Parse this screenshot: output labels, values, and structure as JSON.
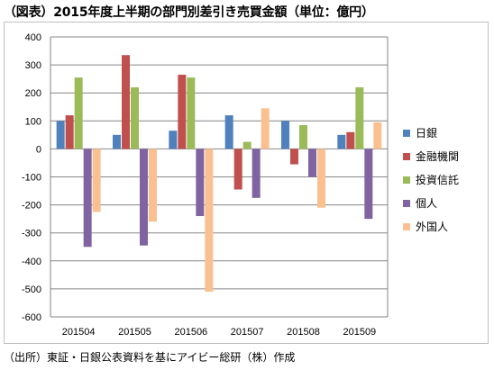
{
  "title": "（図表）2015年度上半期の部門別差引き売買金額（単位：億円）",
  "source": "（出所）東証・日銀公表資料を基にアイビー総研（株）作成",
  "chart_data": {
    "type": "bar",
    "categories": [
      "201504",
      "201505",
      "201506",
      "201507",
      "201508",
      "201509"
    ],
    "series": [
      {
        "name": "日銀",
        "color": "#4f81bd",
        "values": [
          100,
          50,
          65,
          120,
          100,
          50
        ]
      },
      {
        "name": "金融機関",
        "color": "#c0504d",
        "values": [
          120,
          335,
          265,
          -145,
          -55,
          60
        ]
      },
      {
        "name": "投資信託",
        "color": "#9bbb59",
        "values": [
          255,
          220,
          255,
          25,
          85,
          220
        ]
      },
      {
        "name": "個人",
        "color": "#8064a2",
        "values": [
          -350,
          -345,
          -240,
          -175,
          -100,
          -250
        ]
      },
      {
        "name": "外国人",
        "color": "#fac090",
        "values": [
          -225,
          -260,
          -510,
          145,
          -210,
          95
        ]
      }
    ],
    "ylim": [
      -600,
      400
    ],
    "yticks": [
      400,
      300,
      200,
      100,
      0,
      -100,
      -200,
      -300,
      -400,
      -500,
      -600
    ],
    "grid": true,
    "legend": "right"
  }
}
